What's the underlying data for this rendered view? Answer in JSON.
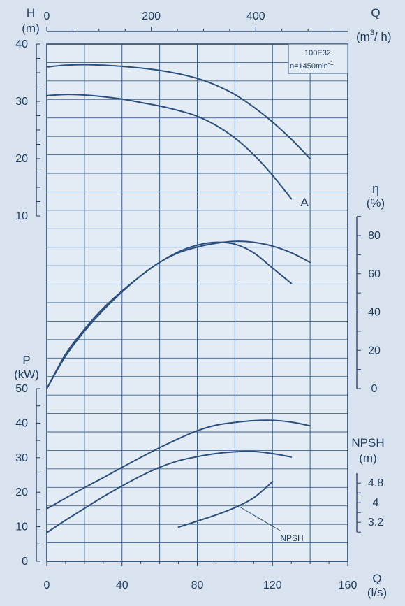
{
  "colors": {
    "background": "#d8e3ef",
    "plot_background": "#e3ebf5",
    "grid": "#3c5f8c",
    "axis": "#1f3a5f",
    "curve": "#2a4f7d",
    "text": "#1f3a5f"
  },
  "labels": {
    "h_symbol": "H",
    "h_unit": "(m)",
    "q_top_symbol": "Q",
    "q_top_unit_a": "(m",
    "q_top_unit_sup": "3",
    "q_top_unit_b": "/ h)",
    "eta_symbol": "η",
    "eta_unit": "(%)",
    "p_symbol": "P",
    "p_unit": "(kW)",
    "npsh_symbol": "NPSH",
    "npsh_unit": "(m)",
    "q_bottom_symbol": "Q",
    "q_bottom_unit": "(l/s)",
    "model": "100E32",
    "speed_a": "n=1450min",
    "speed_sup": "-1",
    "curve_a_label": "A",
    "npsh_callout": "NPSH"
  },
  "chart_data": {
    "type": "line",
    "x_axis": {
      "label": "Q (l/s)",
      "range": [
        0,
        160
      ],
      "ticks": [
        0,
        40,
        80,
        120,
        160
      ],
      "secondary": {
        "label": "Q (m3/h)",
        "ticks": [
          0,
          200,
          400
        ],
        "factor": 3.6
      }
    },
    "panels": [
      {
        "name": "head",
        "ylabel": "H (m)",
        "ylim": [
          10,
          40
        ],
        "ticks": [
          10,
          20,
          30,
          40
        ],
        "series": [
          {
            "x": [
              0,
              10,
              20,
              30,
              40,
              50,
              60,
              70,
              80,
              90,
              100,
              110,
              120,
              130,
              140
            ],
            "y": [
              36.0,
              36.3,
              36.4,
              36.3,
              36.1,
              35.8,
              35.4,
              34.8,
              34.0,
              32.8,
              31.2,
              29.0,
              26.4,
              23.4,
              20.0
            ]
          },
          {
            "x": [
              0,
              10,
              20,
              30,
              40,
              50,
              60,
              70,
              80,
              90,
              100,
              110,
              120,
              130
            ],
            "y": [
              31.0,
              31.2,
              31.1,
              30.8,
              30.4,
              29.8,
              29.2,
              28.4,
              27.4,
              25.8,
              23.6,
              20.7,
              17.1,
              13.0
            ]
          }
        ]
      },
      {
        "name": "efficiency",
        "ylabel": "η (%)",
        "ylim": [
          0,
          80
        ],
        "ticks": [
          0,
          20,
          40,
          60,
          80
        ],
        "series": [
          {
            "x": [
              0,
              10,
              20,
              30,
              40,
              50,
              60,
              70,
              80,
              90,
              100,
              110,
              120,
              130,
              140
            ],
            "y": [
              0,
              18,
              31,
              42,
              51,
              59,
              66,
              71,
              74,
              76,
              77,
              76.5,
              74.5,
              71,
              66
            ]
          },
          {
            "x": [
              0,
              10,
              20,
              30,
              40,
              50,
              60,
              70,
              80,
              90,
              100,
              110,
              120,
              130
            ],
            "y": [
              0,
              17,
              30,
              41,
              50.5,
              59,
              66,
              71.5,
              75,
              76.5,
              75.5,
              71,
              63,
              55
            ]
          }
        ]
      },
      {
        "name": "power",
        "ylabel": "P (kW)",
        "ylim": [
          0,
          50
        ],
        "ticks": [
          0,
          10,
          20,
          30,
          40,
          50
        ],
        "series": [
          {
            "x": [
              0,
              10,
              20,
              30,
              40,
              50,
              60,
              70,
              80,
              90,
              100,
              110,
              120,
              130,
              140
            ],
            "y": [
              15.2,
              18.3,
              21.3,
              24.2,
              27.2,
              30.1,
              32.9,
              35.5,
              37.8,
              39.4,
              40.2,
              40.7,
              40.8,
              40.3,
              39.2
            ]
          },
          {
            "x": [
              0,
              10,
              20,
              30,
              40,
              50,
              60,
              70,
              80,
              90,
              100,
              110,
              120,
              130
            ],
            "y": [
              8.3,
              11.9,
              15.3,
              18.7,
              21.8,
              24.7,
              27.2,
              29.1,
              30.3,
              31.2,
              31.7,
              31.8,
              31.2,
              30.2
            ]
          }
        ]
      },
      {
        "name": "npsh",
        "ylabel": "NPSH (m)",
        "ylim": [
          2.4,
          5.2
        ],
        "ticks": [
          3.2,
          4,
          4.8
        ],
        "series": [
          {
            "x": [
              70,
              80,
              90,
              100,
              110,
              120
            ],
            "y": [
              3.0,
              3.25,
              3.5,
              3.8,
              4.2,
              4.86
            ]
          }
        ]
      }
    ]
  }
}
